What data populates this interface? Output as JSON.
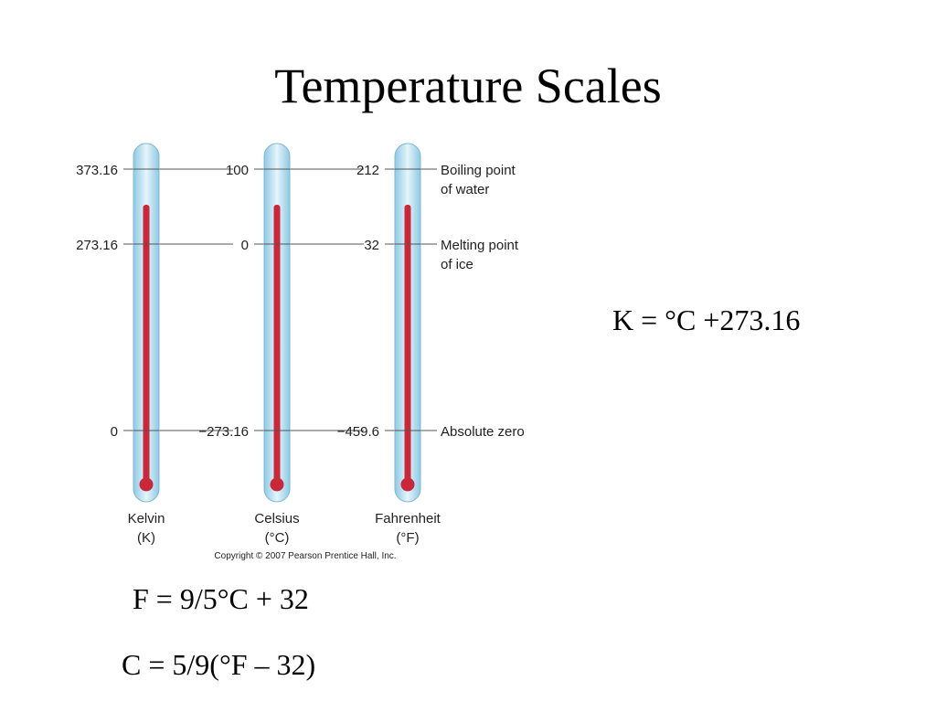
{
  "title": "Temperature Scales",
  "thermometers": [
    {
      "name": "Kelvin",
      "unit": "(K)",
      "readings": [
        "373.16",
        "273.16",
        "0"
      ]
    },
    {
      "name": "Celsius",
      "unit": "(°C)",
      "readings": [
        "100",
        "0",
        "−273.16"
      ]
    },
    {
      "name": "Fahrenheit",
      "unit": "(°F)",
      "readings": [
        "212",
        "32",
        "−459.6"
      ]
    }
  ],
  "reference_points": [
    {
      "lines": [
        "Boiling point",
        "of water"
      ]
    },
    {
      "lines": [
        "Melting point",
        "of ice"
      ]
    },
    {
      "lines": [
        "Absolute zero"
      ]
    }
  ],
  "copyright": "Copyright © 2007 Pearson Prentice Hall, Inc.",
  "formulas": [
    "K = °C +273.16",
    "F = 9/5°C + 32",
    "C = 5/9(°F – 32)"
  ]
}
